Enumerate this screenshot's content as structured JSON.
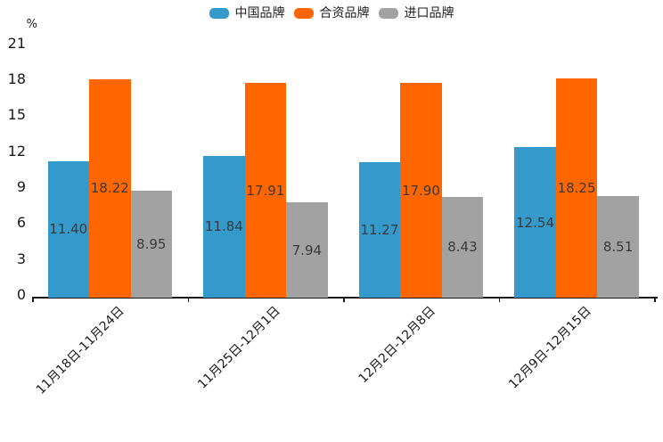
{
  "chart_data": {
    "type": "bar",
    "title": "",
    "unit_label": "%",
    "categories": [
      "11月18日-11月24日",
      "11月25日-12月1日",
      "12月2日-12月8日",
      "12月9日-12月15日"
    ],
    "series": [
      {
        "name": "中国品牌",
        "color": "#3499cb",
        "values": [
          11.4,
          11.84,
          11.27,
          12.54
        ]
      },
      {
        "name": "合资品牌",
        "color": "#ff6600",
        "values": [
          18.22,
          17.91,
          17.9,
          18.25
        ]
      },
      {
        "name": "进口品牌",
        "color": "#a2a2a2",
        "values": [
          8.95,
          7.94,
          8.43,
          8.51
        ]
      }
    ],
    "value_label_decimals": 2,
    "yticks": [
      0,
      3,
      6,
      9,
      12,
      15,
      18,
      21
    ],
    "ylim": [
      0,
      21
    ],
    "legend_position": "top-center",
    "grid": false,
    "value_labels_visible": true
  }
}
